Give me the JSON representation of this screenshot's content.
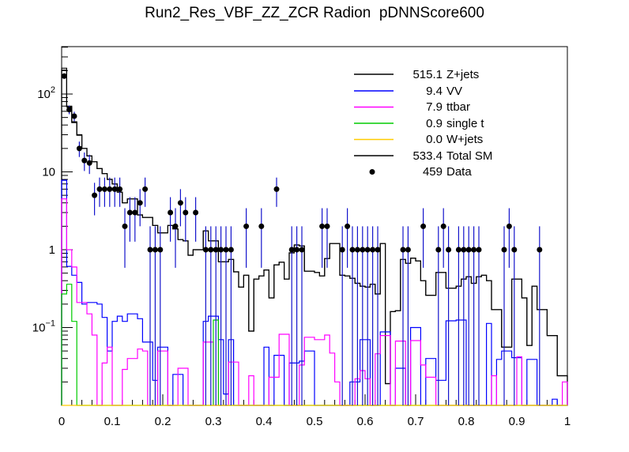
{
  "title": "Run2_Res_VBF_ZZ_ZCR Radion  pDNNScore600",
  "colors": {
    "background": "#ffffff",
    "frame": "#000000",
    "error_bar": "#1414cc",
    "marker": "#000000"
  },
  "legend": {
    "entries": [
      {
        "value": "515.1",
        "label": "Z+jets",
        "color": "#000000",
        "sample": "line"
      },
      {
        "value": "9.4",
        "label": "VV",
        "color": "#0000ff",
        "sample": "line"
      },
      {
        "value": "7.9",
        "label": "ttbar",
        "color": "#ff00ff",
        "sample": "line"
      },
      {
        "value": "0.9",
        "label": "single t",
        "color": "#00cc00",
        "sample": "line"
      },
      {
        "value": "0.0",
        "label": "W+jets",
        "color": "#ffcc00",
        "sample": "line"
      },
      {
        "value": "533.4",
        "label": "Total SM",
        "color": "#000000",
        "sample": "line"
      },
      {
        "value": "459",
        "label": "Data",
        "color": "#000000",
        "sample": "marker"
      }
    ]
  },
  "axes": {
    "x": {
      "min": 0,
      "max": 1,
      "major_step": 0.1,
      "minor_step": 0.02,
      "tick_labels": [
        "0",
        "0.1",
        "0.2",
        "0.3",
        "0.4",
        "0.5",
        "0.6",
        "0.7",
        "0.8",
        "0.9",
        "1"
      ]
    },
    "y": {
      "scale": "log",
      "min": 0.01,
      "max": 420,
      "tick_labels": [
        {
          "value": 100,
          "base": "10",
          "sup": "2"
        },
        {
          "value": 10,
          "base": "10",
          "sup": ""
        },
        {
          "value": 1,
          "base": "1",
          "sup": ""
        },
        {
          "value": 0.1,
          "base": "10",
          "sup": "−1"
        }
      ]
    }
  },
  "chart_data": {
    "type": "histogram",
    "title": "Run2_Res_VBF_ZZ_ZCR Radion  pDNNScore600",
    "xlabel": "pDNNScore600",
    "ylabel": "",
    "xlim": [
      0,
      1
    ],
    "ylim": [
      0.01,
      420
    ],
    "yscale": "log",
    "grid": false,
    "legend_position": "top-right",
    "x_start": 0,
    "bin_width": 0.01,
    "n_bins": 100,
    "series": [
      {
        "name": "Z+jets",
        "yield": 515.1,
        "color": "#000000",
        "values": [
          203,
          68,
          43,
          29.5,
          20,
          16,
          13.5,
          11,
          9.5,
          8,
          7,
          5.5,
          4,
          4.5,
          4.5,
          2.8,
          2.6,
          2.6,
          2.05,
          1.65,
          1.65,
          2.05,
          1.85,
          1.35,
          1.3,
          0.85,
          1,
          1,
          1.75,
          1.3,
          1.3,
          0.7,
          0.7,
          0.75,
          0.52,
          0.33,
          0.47,
          0.09,
          0.42,
          0.46,
          0.55,
          0.24,
          0.64,
          0.69,
          0.42,
          0.91,
          1.15,
          1.12,
          0.53,
          0.53,
          0.51,
          0.46,
          0.77,
          1.2,
          1.2,
          0.47,
          0.46,
          0.43,
          0.37,
          0.34,
          0.33,
          0.36,
          0.27,
          1.2,
          0.019,
          0.16,
          0.165,
          0.75,
          0.67,
          0.78,
          0.72,
          0.4,
          0.26,
          0.26,
          0.51,
          0.51,
          0.32,
          0.32,
          0.34,
          0.42,
          0.45,
          0.37,
          0.45,
          0.47,
          0.4,
          0.17,
          0.17,
          0.056,
          0.056,
          0.42,
          0.42,
          0.24,
          0.059,
          0.34,
          0.17,
          0.17,
          0.079,
          0.079,
          0.024,
          0.024
        ]
      },
      {
        "name": "VV",
        "yield": 9.4,
        "color": "#0000ff",
        "values": [
          7.8,
          0.61,
          0.47,
          0.38,
          0.2,
          0.21,
          0.21,
          0.2,
          0.135,
          0.05,
          0.12,
          0.14,
          0.12,
          0.15,
          0.15,
          0.13,
          0.065,
          0.065,
          0.021,
          0.056,
          0.056,
          0,
          0.025,
          0.025,
          0,
          0,
          0,
          0,
          0.12,
          0.14,
          0.14,
          0.07,
          0.014,
          0.07,
          0,
          0,
          0,
          0,
          0,
          0,
          0.056,
          0,
          0.044,
          0.044,
          0,
          0.035,
          0.035,
          0.037,
          0.05,
          0.05,
          0,
          0,
          0,
          0,
          0,
          0,
          0,
          0.02,
          0.02,
          0.07,
          0.07,
          0,
          0,
          0.088,
          0.088,
          0,
          0.03,
          0.03,
          0,
          0.1,
          0.1,
          0,
          0.04,
          0.04,
          0.021,
          0.021,
          0.122,
          0.122,
          0.125,
          0.125,
          0,
          0,
          0,
          0,
          0.113,
          0,
          0.039,
          0.05,
          0.05,
          0.041,
          0.041,
          0,
          0.039,
          0.039,
          0,
          0,
          0,
          0.012,
          0,
          0
        ]
      },
      {
        "name": "ttbar",
        "yield": 7.9,
        "color": "#ff00ff",
        "values": [
          4.5,
          1,
          0.6,
          0.21,
          0.21,
          0.15,
          0.08,
          0,
          0.035,
          0.056,
          0,
          0,
          0.029,
          0.04,
          0.04,
          0.053,
          0.05,
          0,
          0,
          0.05,
          0.05,
          0,
          0,
          0.03,
          0.03,
          0,
          0,
          0,
          0.065,
          0.065,
          0,
          0,
          0,
          0.036,
          0.036,
          0,
          0,
          0.024,
          0,
          0,
          0,
          0.023,
          0.023,
          0.082,
          0.082,
          0,
          0,
          0.033,
          0.075,
          0.075,
          0.07,
          0.07,
          0.08,
          0.047,
          0.02,
          0,
          0,
          0,
          0.022,
          0.028,
          0.022,
          0,
          0.046,
          0.079,
          0.079,
          0,
          0.067,
          0.067,
          0,
          0.068,
          0.068,
          0.033,
          0.023,
          0.023,
          0,
          0,
          0,
          0,
          0,
          0,
          0,
          0,
          0,
          0,
          0,
          0.024,
          0,
          0,
          0,
          0,
          0.042,
          0,
          0,
          0,
          0,
          0,
          0,
          0,
          0,
          0.02
        ]
      },
      {
        "name": "single t",
        "yield": 0.9,
        "color": "#00cc00",
        "values": [
          0.27,
          0.36,
          0.12,
          0,
          0,
          0,
          0,
          0,
          0,
          0,
          0,
          0,
          0,
          0,
          0,
          0,
          0,
          0,
          0,
          0,
          0,
          0,
          0,
          0,
          0,
          0,
          0,
          0,
          0,
          0,
          0.125,
          0,
          0,
          0,
          0,
          0,
          0,
          0,
          0,
          0,
          0,
          0,
          0,
          0,
          0,
          0,
          0,
          0,
          0,
          0,
          0,
          0,
          0,
          0,
          0,
          0,
          0,
          0,
          0,
          0,
          0,
          0,
          0,
          0,
          0,
          0,
          0,
          0,
          0,
          0,
          0,
          0,
          0,
          0,
          0,
          0,
          0,
          0,
          0,
          0,
          0,
          0,
          0,
          0,
          0,
          0,
          0,
          0,
          0,
          0,
          0,
          0,
          0,
          0,
          0,
          0,
          0,
          0,
          0,
          0
        ]
      },
      {
        "name": "W+jets",
        "yield": 0.0,
        "color": "#ffcc00",
        "values": [
          0,
          0,
          0,
          0,
          0,
          0,
          0,
          0,
          0,
          0,
          0,
          0,
          0,
          0,
          0,
          0,
          0,
          0,
          0,
          0,
          0,
          0,
          0,
          0,
          0,
          0,
          0,
          0,
          0,
          0,
          0,
          0,
          0,
          0,
          0,
          0,
          0,
          0,
          0,
          0,
          0,
          0,
          0,
          0,
          0,
          0,
          0,
          0,
          0,
          0,
          0,
          0,
          0,
          0,
          0,
          0,
          0,
          0,
          0,
          0,
          0,
          0,
          0,
          0,
          0,
          0,
          0,
          0,
          0,
          0,
          0,
          0,
          0,
          0,
          0,
          0,
          0,
          0,
          0,
          0,
          0,
          0,
          0,
          0,
          0,
          0,
          0,
          0,
          0,
          0,
          0,
          0,
          0,
          0,
          0,
          0,
          0,
          0,
          0,
          0
        ]
      },
      {
        "name": "Total SM",
        "yield": 533.4,
        "color": "#000000",
        "values": [
          215,
          70,
          44,
          30,
          20,
          16,
          13.5,
          11,
          9.5,
          8,
          7,
          5.5,
          4,
          4.5,
          4.5,
          2.8,
          2.6,
          2.6,
          2.05,
          1.65,
          1.65,
          2.05,
          1.85,
          1.35,
          1.3,
          0.85,
          1,
          1,
          1.75,
          1.3,
          1.3,
          0.7,
          0.7,
          0.75,
          0.52,
          0.33,
          0.47,
          0.09,
          0.42,
          0.46,
          0.55,
          0.24,
          0.64,
          0.69,
          0.42,
          0.91,
          1.15,
          1.12,
          0.53,
          0.53,
          0.51,
          0.46,
          0.77,
          1.2,
          1.2,
          0.47,
          0.46,
          0.43,
          0.37,
          0.34,
          0.33,
          0.36,
          0.27,
          1.2,
          0.019,
          0.16,
          0.165,
          0.75,
          0.67,
          0.78,
          0.72,
          0.4,
          0.26,
          0.26,
          0.51,
          0.51,
          0.32,
          0.32,
          0.34,
          0.42,
          0.45,
          0.37,
          0.45,
          0.47,
          0.4,
          0.17,
          0.17,
          0.056,
          0.056,
          0.42,
          0.42,
          0.24,
          0.059,
          0.34,
          0.17,
          0.17,
          0.079,
          0.079,
          0.024,
          0.024
        ]
      }
    ],
    "data_points": {
      "name": "Data",
      "yield": 459,
      "marker_color": "#000000",
      "error_color": "#1414cc",
      "points": [
        [
          0.005,
          170
        ],
        [
          0.015,
          63
        ],
        [
          0.025,
          52
        ],
        [
          0.035,
          20
        ],
        [
          0.045,
          14
        ],
        [
          0.055,
          13
        ],
        [
          0.065,
          5
        ],
        [
          0.075,
          6
        ],
        [
          0.085,
          6
        ],
        [
          0.095,
          6
        ],
        [
          0.105,
          6
        ],
        [
          0.115,
          6
        ],
        [
          0.125,
          2
        ],
        [
          0.135,
          3
        ],
        [
          0.145,
          3
        ],
        [
          0.155,
          4
        ],
        [
          0.165,
          6
        ],
        [
          0.175,
          1
        ],
        [
          0.185,
          1
        ],
        [
          0.195,
          1
        ],
        [
          0.215,
          3
        ],
        [
          0.225,
          2
        ],
        [
          0.235,
          4
        ],
        [
          0.245,
          3
        ],
        [
          0.265,
          3
        ],
        [
          0.285,
          1
        ],
        [
          0.295,
          1
        ],
        [
          0.305,
          1
        ],
        [
          0.315,
          1
        ],
        [
          0.325,
          1
        ],
        [
          0.335,
          1
        ],
        [
          0.365,
          2
        ],
        [
          0.395,
          2
        ],
        [
          0.425,
          6
        ],
        [
          0.455,
          1
        ],
        [
          0.465,
          1
        ],
        [
          0.475,
          1
        ],
        [
          0.515,
          2
        ],
        [
          0.525,
          2
        ],
        [
          0.555,
          1
        ],
        [
          0.565,
          2
        ],
        [
          0.575,
          1
        ],
        [
          0.585,
          1
        ],
        [
          0.595,
          1
        ],
        [
          0.605,
          1
        ],
        [
          0.615,
          1
        ],
        [
          0.625,
          1
        ],
        [
          0.675,
          1
        ],
        [
          0.685,
          1
        ],
        [
          0.715,
          2
        ],
        [
          0.745,
          1
        ],
        [
          0.755,
          2
        ],
        [
          0.765,
          1
        ],
        [
          0.785,
          1
        ],
        [
          0.795,
          1
        ],
        [
          0.805,
          1
        ],
        [
          0.815,
          1
        ],
        [
          0.825,
          1
        ],
        [
          0.875,
          1
        ],
        [
          0.885,
          2
        ],
        [
          0.895,
          1
        ],
        [
          0.945,
          1
        ]
      ]
    }
  }
}
